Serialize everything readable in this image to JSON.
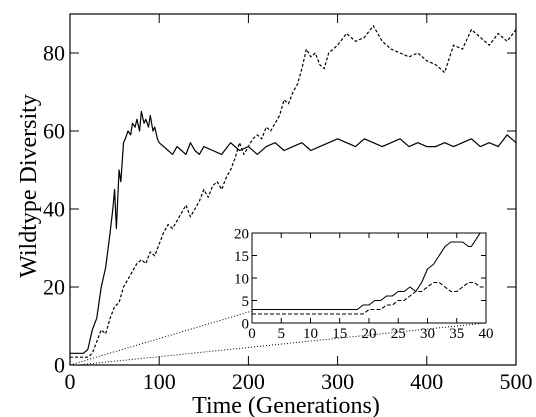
{
  "chart_data": [
    {
      "type": "line",
      "xlabel": "Time (Generations)",
      "ylabel": "Wildtype Diversity",
      "xlim": [
        0,
        500
      ],
      "ylim": [
        0,
        90
      ],
      "xticks": [
        0,
        100,
        200,
        300,
        400,
        500
      ],
      "yticks": [
        0,
        20,
        40,
        60,
        80
      ],
      "grid": false,
      "series": [
        {
          "style": "solid",
          "x": [
            0,
            10,
            15,
            20,
            25,
            30,
            35,
            40,
            45,
            48,
            50,
            52,
            55,
            57,
            60,
            62,
            65,
            68,
            70,
            73,
            75,
            78,
            80,
            83,
            85,
            88,
            90,
            93,
            95,
            98,
            100,
            105,
            110,
            115,
            120,
            125,
            130,
            135,
            140,
            145,
            150,
            160,
            170,
            180,
            190,
            200,
            210,
            220,
            230,
            240,
            250,
            260,
            270,
            280,
            290,
            300,
            310,
            320,
            330,
            340,
            350,
            360,
            370,
            380,
            390,
            400,
            410,
            420,
            430,
            440,
            450,
            460,
            470,
            480,
            490,
            500
          ],
          "y": [
            3,
            3,
            3,
            4,
            9,
            12,
            20,
            25,
            34,
            40,
            45,
            35,
            50,
            47,
            57,
            58,
            60,
            59,
            62,
            61,
            63,
            60,
            65,
            62,
            63,
            61,
            64,
            60,
            61,
            58,
            57,
            56,
            55,
            54,
            56,
            55,
            54,
            57,
            55,
            54,
            56,
            55,
            54,
            57,
            55,
            56,
            54,
            56,
            57,
            55,
            56,
            57,
            55,
            56,
            57,
            58,
            57,
            56,
            58,
            57,
            56,
            57,
            58,
            56,
            57,
            56,
            56,
            57,
            56,
            57,
            58,
            56,
            57,
            56,
            59,
            57
          ]
        },
        {
          "style": "dashed",
          "x": [
            0,
            10,
            20,
            25,
            30,
            35,
            40,
            45,
            50,
            55,
            60,
            65,
            70,
            75,
            80,
            85,
            90,
            95,
            100,
            105,
            110,
            115,
            120,
            125,
            130,
            135,
            140,
            145,
            150,
            155,
            160,
            165,
            170,
            175,
            180,
            185,
            190,
            195,
            200,
            205,
            210,
            215,
            220,
            225,
            230,
            235,
            240,
            245,
            250,
            255,
            260,
            265,
            270,
            275,
            280,
            285,
            290,
            295,
            300,
            310,
            320,
            330,
            340,
            350,
            360,
            370,
            380,
            390,
            400,
            410,
            420,
            430,
            440,
            450,
            460,
            470,
            480,
            490,
            500
          ],
          "y": [
            2,
            2,
            2,
            3,
            6,
            9,
            8,
            12,
            15,
            16,
            20,
            22,
            24,
            26,
            27,
            26,
            29,
            28,
            31,
            34,
            36,
            35,
            37,
            39,
            41,
            38,
            40,
            42,
            45,
            43,
            46,
            47,
            45,
            48,
            50,
            53,
            57,
            54,
            56,
            58,
            59,
            58,
            61,
            60,
            62,
            64,
            68,
            67,
            70,
            72,
            76,
            81,
            79,
            80,
            77,
            76,
            80,
            81,
            82,
            85,
            83,
            84,
            87,
            83,
            81,
            80,
            79,
            80,
            78,
            77,
            75,
            82,
            81,
            86,
            84,
            82,
            85,
            83,
            86
          ]
        }
      ]
    },
    {
      "type": "line",
      "inset": true,
      "xlim": [
        0,
        40
      ],
      "ylim": [
        0,
        20
      ],
      "xticks": [
        0,
        5,
        10,
        15,
        20,
        25,
        30,
        35,
        40
      ],
      "yticks": [
        0,
        5,
        10,
        15,
        20
      ],
      "grid": false,
      "series": [
        {
          "style": "solid",
          "x": [
            0,
            17,
            18,
            19,
            20,
            21,
            22,
            23,
            24,
            25,
            26,
            27,
            28,
            29,
            30,
            31,
            32,
            33,
            34,
            35,
            36,
            37,
            37.5,
            38,
            39,
            40
          ],
          "y": [
            3,
            3,
            3,
            4,
            4,
            5,
            5,
            6,
            6,
            7,
            7,
            8,
            7,
            9,
            12,
            13,
            15,
            17,
            18,
            18,
            18,
            17,
            17,
            18,
            20,
            20
          ]
        },
        {
          "style": "dashed",
          "x": [
            0,
            19,
            20,
            21,
            22,
            23,
            24,
            25,
            26,
            27,
            28,
            29,
            30,
            31,
            32,
            33,
            34,
            35,
            36,
            37,
            38,
            39,
            40
          ],
          "y": [
            2,
            2,
            3,
            3,
            3,
            4,
            4,
            5,
            5,
            6,
            7,
            7,
            8,
            9,
            9,
            8,
            7,
            7,
            8,
            9,
            9,
            8,
            8
          ]
        }
      ]
    }
  ]
}
